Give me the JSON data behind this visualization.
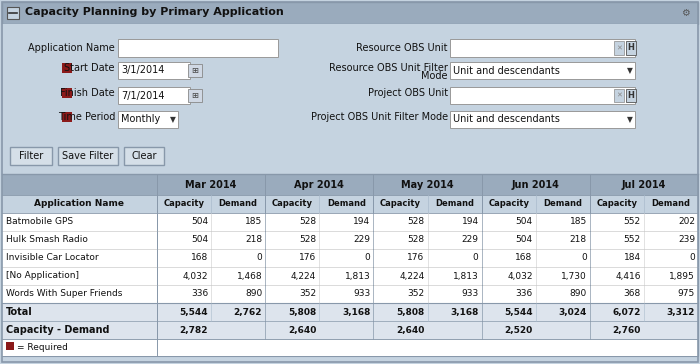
{
  "title": "Capacity Planning by Primary Application",
  "header_bg": "#9aabbd",
  "form_bg": "#c5d3e0",
  "table_header_bg": "#9aabbd",
  "table_subheader_bg": "#c5d3e0",
  "table_total_bg": "#dde4ed",
  "border_color": "#8898aa",
  "months": [
    "Mar 2014",
    "Apr 2014",
    "May 2014",
    "Jun 2014",
    "Jul 2014"
  ],
  "app_names": [
    "Batmobile GPS",
    "Hulk Smash Radio",
    "Invisible Car Locator",
    "[No Application]",
    "Words With Super Friends"
  ],
  "data": [
    [
      504,
      185,
      528,
      194,
      528,
      194,
      504,
      185,
      552,
      202
    ],
    [
      504,
      218,
      528,
      229,
      528,
      229,
      504,
      218,
      552,
      239
    ],
    [
      168,
      0,
      176,
      0,
      176,
      0,
      168,
      0,
      184,
      0
    ],
    [
      4032,
      1468,
      4224,
      1813,
      4224,
      1813,
      4032,
      1730,
      4416,
      1895
    ],
    [
      336,
      890,
      352,
      933,
      352,
      933,
      336,
      890,
      368,
      975
    ]
  ],
  "total_row": [
    5544,
    2762,
    5808,
    3168,
    5808,
    3168,
    5544,
    3024,
    6072,
    3312
  ],
  "cap_demand_row": [
    2782,
    null,
    2640,
    null,
    2640,
    null,
    2520,
    null,
    2760,
    null
  ],
  "legend_text": "= Required",
  "required_color": "#8B1A1A"
}
